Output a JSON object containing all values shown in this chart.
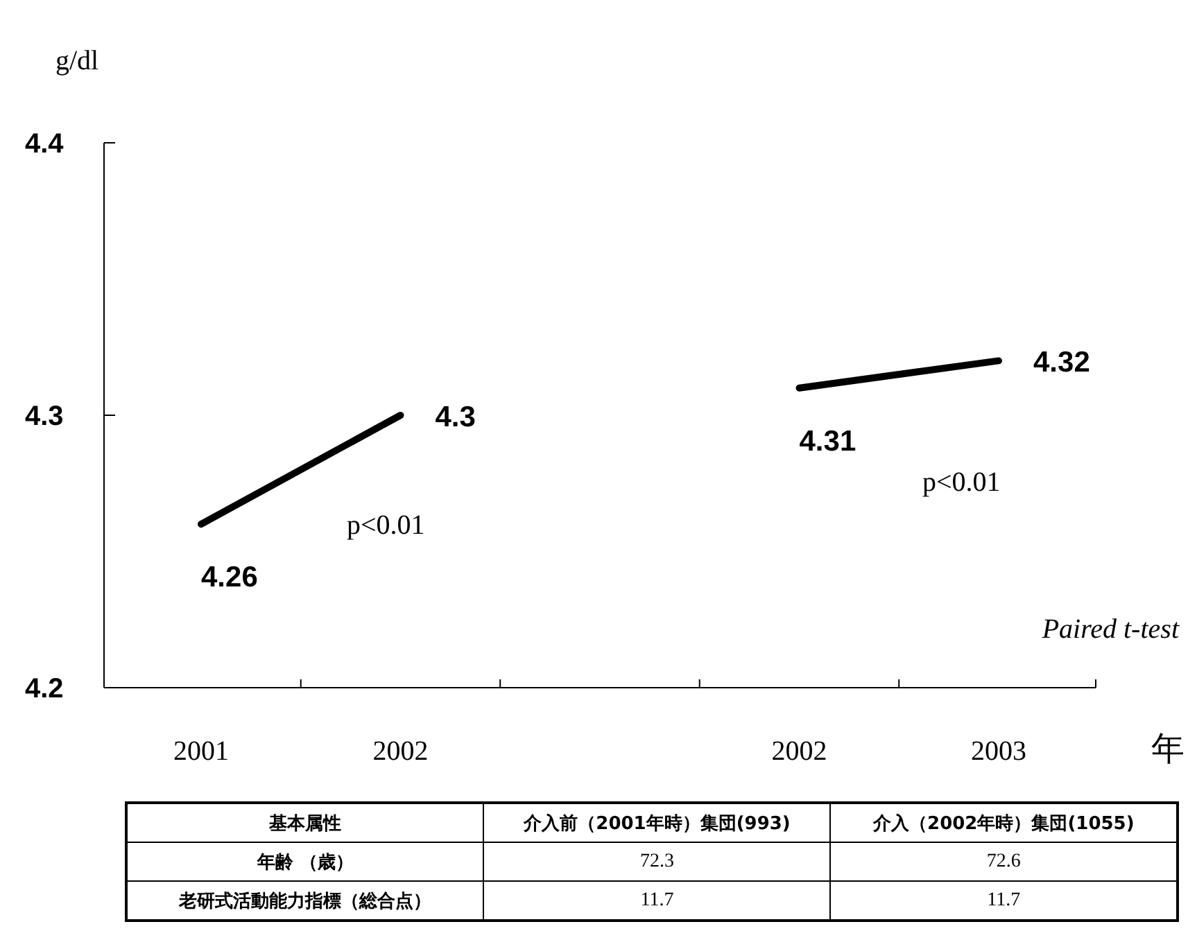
{
  "chart_data": {
    "type": "line",
    "ylabel": "g/dl",
    "xlabel": "年",
    "categories": [
      "2001",
      "2002",
      null,
      "2002",
      "2003"
    ],
    "series": [
      {
        "color": "#000000",
        "values": [
          4.26,
          4.3,
          null,
          null,
          null
        ]
      },
      {
        "color": "#000000",
        "values": [
          null,
          null,
          null,
          4.31,
          4.32
        ]
      }
    ],
    "ylim": [
      4.2,
      4.4
    ],
    "yticks": [
      4.2,
      4.3,
      4.4
    ],
    "data_labels": true,
    "marker": "none",
    "line_style": "solid",
    "annotations": [
      "p<0.01",
      "p<0.01",
      "*Paired t-test*",
      "基本属性",
      "介入前（2001年時）集団(993)",
      "介入（2002年時）集団(1055)",
      "年齢 （歳）",
      "72.3",
      "72.6",
      "老研式活動能力指標（総合点）",
      "11.7",
      "11.7"
    ]
  }
}
